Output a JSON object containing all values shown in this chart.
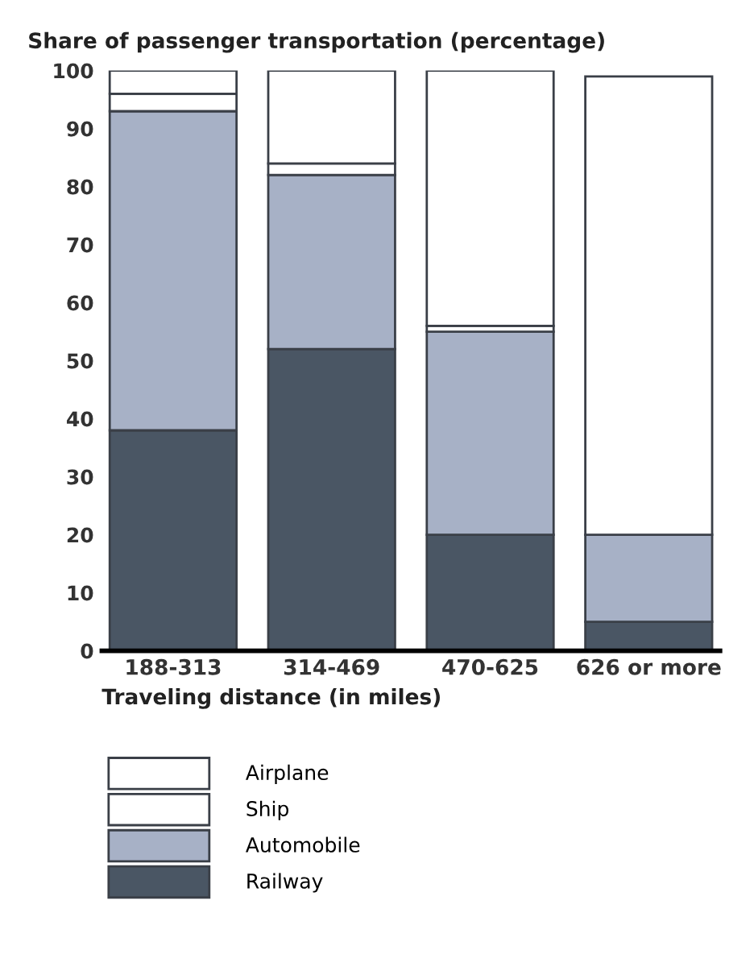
{
  "chart_data": {
    "type": "bar",
    "stacked": true,
    "title": "Share of passenger transportation (percentage)",
    "xlabel": "Traveling distance (in miles)",
    "categories": [
      "188-313",
      "314-469",
      "470-625",
      "626 or more"
    ],
    "series": [
      {
        "name": "Railway",
        "color": "#4a5664",
        "values": [
          38,
          52,
          20,
          5
        ]
      },
      {
        "name": "Automobile",
        "color": "#a7b1c6",
        "values": [
          55,
          30,
          35,
          15
        ]
      },
      {
        "name": "Ship",
        "color": "#ffffff",
        "values": [
          3,
          2,
          1,
          0
        ]
      },
      {
        "name": "Airplane",
        "color": "#ffffff",
        "values": [
          4,
          16,
          44,
          79
        ]
      }
    ],
    "ylim": [
      0,
      100
    ],
    "yticks": [
      0,
      10,
      20,
      30,
      40,
      50,
      60,
      70,
      80,
      90,
      100
    ],
    "grid": false,
    "legend": "bottom"
  }
}
